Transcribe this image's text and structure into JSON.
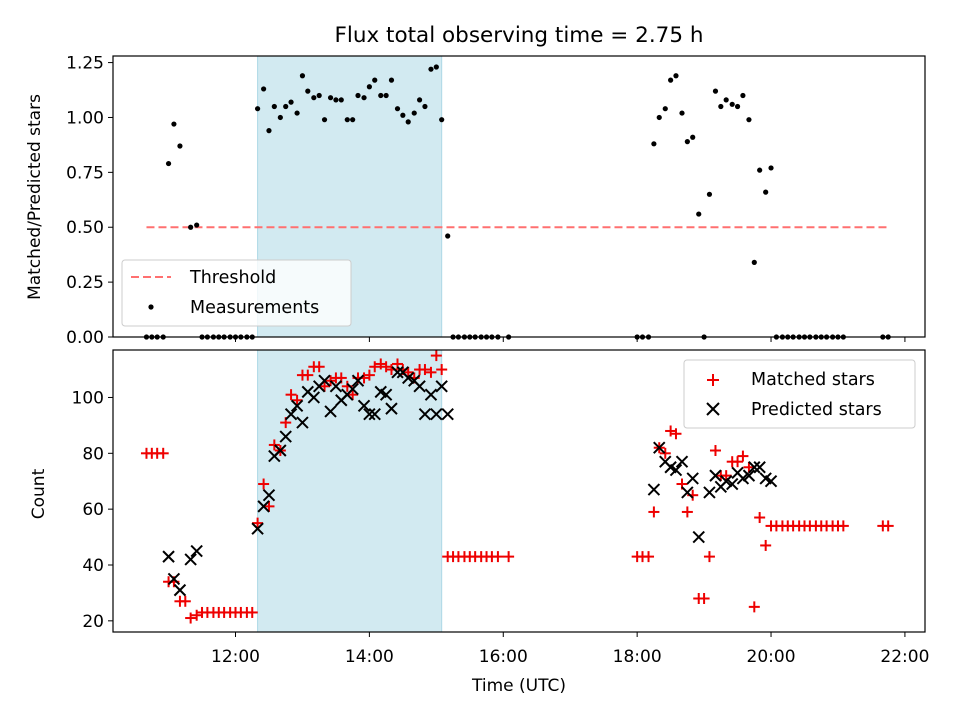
{
  "title": "Flux total observing time = 2.75 h",
  "colors": {
    "threshold": "#ff7070",
    "measurement": "#000000",
    "matched": "#ee0000",
    "predicted": "#000000",
    "shade": "#add8e6"
  },
  "chart_data": [
    {
      "type": "scatter",
      "ylabel": "Matched/Predicted stars",
      "xlabel": "",
      "xlim": [
        10.17,
        22.3
      ],
      "ylim": [
        0,
        1.28
      ],
      "yticks": [
        0.0,
        0.25,
        0.5,
        0.75,
        1.0,
        1.25
      ],
      "ytick_labels": [
        "0.00",
        "0.25",
        "0.50",
        "0.75",
        "1.00",
        "1.25"
      ],
      "xticks": [
        12,
        14,
        16,
        18,
        20,
        22
      ],
      "shaded_interval": [
        12.33,
        15.08
      ],
      "legend": {
        "placement": "lower-left",
        "entries": [
          "Threshold",
          "Measurements"
        ]
      },
      "threshold": {
        "name": "Threshold",
        "value": 0.5,
        "x_range": [
          10.67,
          21.75
        ]
      },
      "measurements": {
        "name": "Measurements",
        "points": [
          [
            10.67,
            0
          ],
          [
            10.75,
            0
          ],
          [
            10.83,
            0
          ],
          [
            10.92,
            0
          ],
          [
            11.0,
            0.79
          ],
          [
            11.08,
            0.97
          ],
          [
            11.17,
            0.87
          ],
          [
            11.33,
            0.5
          ],
          [
            11.42,
            0.51
          ],
          [
            11.5,
            0
          ],
          [
            11.58,
            0
          ],
          [
            11.67,
            0
          ],
          [
            11.75,
            0
          ],
          [
            11.83,
            0
          ],
          [
            11.92,
            0
          ],
          [
            12.0,
            0
          ],
          [
            12.08,
            0
          ],
          [
            12.17,
            0
          ],
          [
            12.25,
            0
          ],
          [
            12.33,
            1.04
          ],
          [
            12.42,
            1.13
          ],
          [
            12.5,
            0.94
          ],
          [
            12.58,
            1.05
          ],
          [
            12.67,
            1.0
          ],
          [
            12.75,
            1.05
          ],
          [
            12.83,
            1.07
          ],
          [
            12.92,
            1.02
          ],
          [
            13.0,
            1.19
          ],
          [
            13.08,
            1.12
          ],
          [
            13.17,
            1.09
          ],
          [
            13.25,
            1.1
          ],
          [
            13.33,
            0.99
          ],
          [
            13.42,
            1.09
          ],
          [
            13.5,
            1.08
          ],
          [
            13.58,
            1.08
          ],
          [
            13.67,
            0.99
          ],
          [
            13.75,
            0.99
          ],
          [
            13.83,
            1.1
          ],
          [
            13.92,
            1.09
          ],
          [
            14.0,
            1.14
          ],
          [
            14.08,
            1.17
          ],
          [
            14.17,
            1.1
          ],
          [
            14.25,
            1.1
          ],
          [
            14.33,
            1.17
          ],
          [
            14.42,
            1.04
          ],
          [
            14.5,
            1.01
          ],
          [
            14.58,
            0.98
          ],
          [
            14.67,
            1.02
          ],
          [
            14.75,
            1.08
          ],
          [
            14.83,
            1.05
          ],
          [
            14.92,
            1.22
          ],
          [
            15.0,
            1.23
          ],
          [
            15.08,
            0.99
          ],
          [
            15.17,
            0.46
          ],
          [
            15.25,
            0
          ],
          [
            15.33,
            0
          ],
          [
            15.42,
            0
          ],
          [
            15.5,
            0
          ],
          [
            15.58,
            0
          ],
          [
            15.67,
            0
          ],
          [
            15.75,
            0
          ],
          [
            15.83,
            0
          ],
          [
            15.92,
            0
          ],
          [
            16.08,
            0
          ],
          [
            18.0,
            0
          ],
          [
            18.08,
            0
          ],
          [
            18.17,
            0
          ],
          [
            18.25,
            0.88
          ],
          [
            18.33,
            1.0
          ],
          [
            18.42,
            1.04
          ],
          [
            18.5,
            1.17
          ],
          [
            18.58,
            1.19
          ],
          [
            18.67,
            1.02
          ],
          [
            18.75,
            0.89
          ],
          [
            18.83,
            0.91
          ],
          [
            18.92,
            0.56
          ],
          [
            19.0,
            0
          ],
          [
            19.08,
            0.65
          ],
          [
            19.17,
            1.12
          ],
          [
            19.25,
            1.05
          ],
          [
            19.33,
            1.08
          ],
          [
            19.42,
            1.06
          ],
          [
            19.5,
            1.05
          ],
          [
            19.58,
            1.1
          ],
          [
            19.67,
            0.99
          ],
          [
            19.75,
            0.34
          ],
          [
            19.83,
            0.76
          ],
          [
            19.92,
            0.66
          ],
          [
            20.0,
            0.77
          ],
          [
            20.08,
            0
          ],
          [
            20.17,
            0
          ],
          [
            20.25,
            0
          ],
          [
            20.33,
            0
          ],
          [
            20.42,
            0
          ],
          [
            20.5,
            0
          ],
          [
            20.58,
            0
          ],
          [
            20.67,
            0
          ],
          [
            20.75,
            0
          ],
          [
            20.83,
            0
          ],
          [
            20.92,
            0
          ],
          [
            21.0,
            0
          ],
          [
            21.08,
            0
          ],
          [
            21.67,
            0
          ],
          [
            21.75,
            0
          ]
        ]
      }
    },
    {
      "type": "scatter",
      "xlabel": "Time (UTC)",
      "ylabel": "Count",
      "xlim": [
        10.17,
        22.3
      ],
      "ylim": [
        16,
        117
      ],
      "yticks": [
        20,
        40,
        60,
        80,
        100
      ],
      "ytick_labels": [
        "20",
        "40",
        "60",
        "80",
        "100"
      ],
      "xticks": [
        12,
        14,
        16,
        18,
        20,
        22
      ],
      "xtick_labels": [
        "12:00",
        "14:00",
        "16:00",
        "18:00",
        "20:00",
        "22:00"
      ],
      "shaded_interval": [
        12.33,
        15.08
      ],
      "legend": {
        "placement": "top-right",
        "entries": [
          "Matched stars",
          "Predicted stars"
        ]
      },
      "series": [
        {
          "name": "Matched stars",
          "marker": "+",
          "points": [
            [
              10.67,
              80
            ],
            [
              10.75,
              80
            ],
            [
              10.83,
              80
            ],
            [
              10.92,
              80
            ],
            [
              11.0,
              34
            ],
            [
              11.08,
              34
            ],
            [
              11.17,
              27
            ],
            [
              11.25,
              27
            ],
            [
              11.33,
              21
            ],
            [
              11.42,
              22
            ],
            [
              11.5,
              23
            ],
            [
              11.58,
              23
            ],
            [
              11.67,
              23
            ],
            [
              11.75,
              23
            ],
            [
              11.83,
              23
            ],
            [
              11.92,
              23
            ],
            [
              12.0,
              23
            ],
            [
              12.08,
              23
            ],
            [
              12.17,
              23
            ],
            [
              12.25,
              23
            ],
            [
              12.33,
              55
            ],
            [
              12.42,
              69
            ],
            [
              12.5,
              61
            ],
            [
              12.58,
              83
            ],
            [
              12.67,
              81
            ],
            [
              12.75,
              91
            ],
            [
              12.83,
              101
            ],
            [
              12.92,
              99
            ],
            [
              13.0,
              108
            ],
            [
              13.08,
              108
            ],
            [
              13.17,
              111
            ],
            [
              13.25,
              111
            ],
            [
              13.33,
              104
            ],
            [
              13.42,
              106
            ],
            [
              13.5,
              107
            ],
            [
              13.58,
              107
            ],
            [
              13.67,
              104
            ],
            [
              13.75,
              101
            ],
            [
              13.83,
              107
            ],
            [
              13.92,
              107
            ],
            [
              14.0,
              108
            ],
            [
              14.08,
              111
            ],
            [
              14.17,
              112
            ],
            [
              14.25,
              111
            ],
            [
              14.33,
              110
            ],
            [
              14.42,
              112
            ],
            [
              14.5,
              110
            ],
            [
              14.58,
              109
            ],
            [
              14.67,
              107
            ],
            [
              14.75,
              110
            ],
            [
              14.83,
              110
            ],
            [
              14.92,
              109
            ],
            [
              15.0,
              115
            ],
            [
              15.08,
              110
            ],
            [
              15.17,
              43
            ],
            [
              15.25,
              43
            ],
            [
              15.33,
              43
            ],
            [
              15.42,
              43
            ],
            [
              15.5,
              43
            ],
            [
              15.58,
              43
            ],
            [
              15.67,
              43
            ],
            [
              15.75,
              43
            ],
            [
              15.83,
              43
            ],
            [
              15.92,
              43
            ],
            [
              16.08,
              43
            ],
            [
              18.0,
              43
            ],
            [
              18.08,
              43
            ],
            [
              18.17,
              43
            ],
            [
              18.25,
              59
            ],
            [
              18.33,
              82
            ],
            [
              18.42,
              80
            ],
            [
              18.5,
              88
            ],
            [
              18.58,
              87
            ],
            [
              18.67,
              69
            ],
            [
              18.75,
              59
            ],
            [
              18.83,
              65
            ],
            [
              18.92,
              28
            ],
            [
              19.0,
              28
            ],
            [
              19.08,
              43
            ],
            [
              19.17,
              81
            ],
            [
              19.25,
              72
            ],
            [
              19.33,
              72
            ],
            [
              19.42,
              77
            ],
            [
              19.5,
              77
            ],
            [
              19.58,
              79
            ],
            [
              19.67,
              75
            ],
            [
              19.75,
              25
            ],
            [
              19.83,
              57
            ],
            [
              19.92,
              47
            ],
            [
              20.0,
              54
            ],
            [
              20.08,
              54
            ],
            [
              20.17,
              54
            ],
            [
              20.25,
              54
            ],
            [
              20.33,
              54
            ],
            [
              20.42,
              54
            ],
            [
              20.5,
              54
            ],
            [
              20.58,
              54
            ],
            [
              20.67,
              54
            ],
            [
              20.75,
              54
            ],
            [
              20.83,
              54
            ],
            [
              20.92,
              54
            ],
            [
              21.0,
              54
            ],
            [
              21.08,
              54
            ],
            [
              21.67,
              54
            ],
            [
              21.75,
              54
            ]
          ]
        },
        {
          "name": "Predicted stars",
          "marker": "x",
          "points": [
            [
              11.0,
              43
            ],
            [
              11.08,
              35
            ],
            [
              11.17,
              31
            ],
            [
              11.33,
              42
            ],
            [
              11.42,
              45
            ],
            [
              12.33,
              53
            ],
            [
              12.42,
              61
            ],
            [
              12.5,
              65
            ],
            [
              12.58,
              79
            ],
            [
              12.67,
              81
            ],
            [
              12.75,
              86
            ],
            [
              12.83,
              94
            ],
            [
              12.92,
              97
            ],
            [
              13.0,
              91
            ],
            [
              13.08,
              102
            ],
            [
              13.17,
              100
            ],
            [
              13.25,
              104
            ],
            [
              13.33,
              106
            ],
            [
              13.42,
              95
            ],
            [
              13.5,
              104
            ],
            [
              13.58,
              99
            ],
            [
              13.67,
              101
            ],
            [
              13.75,
              103
            ],
            [
              13.83,
              106
            ],
            [
              13.92,
              97
            ],
            [
              14.0,
              94
            ],
            [
              14.08,
              94
            ],
            [
              14.17,
              102
            ],
            [
              14.25,
              101
            ],
            [
              14.33,
              96
            ],
            [
              14.42,
              109
            ],
            [
              14.5,
              109
            ],
            [
              14.58,
              107
            ],
            [
              14.67,
              106
            ],
            [
              14.75,
              104
            ],
            [
              14.83,
              94
            ],
            [
              14.92,
              101
            ],
            [
              15.0,
              94
            ],
            [
              15.08,
              104
            ],
            [
              15.17,
              94
            ],
            [
              18.25,
              67
            ],
            [
              18.33,
              82
            ],
            [
              18.42,
              77
            ],
            [
              18.5,
              75
            ],
            [
              18.58,
              74
            ],
            [
              18.67,
              77
            ],
            [
              18.75,
              66
            ],
            [
              18.83,
              71
            ],
            [
              18.92,
              50
            ],
            [
              19.08,
              66
            ],
            [
              19.17,
              72
            ],
            [
              19.25,
              68
            ],
            [
              19.33,
              70
            ],
            [
              19.42,
              69
            ],
            [
              19.5,
              73
            ],
            [
              19.58,
              71
            ],
            [
              19.67,
              72
            ],
            [
              19.75,
              75
            ],
            [
              19.83,
              75
            ],
            [
              19.92,
              71
            ],
            [
              20.0,
              70
            ]
          ]
        }
      ]
    }
  ]
}
